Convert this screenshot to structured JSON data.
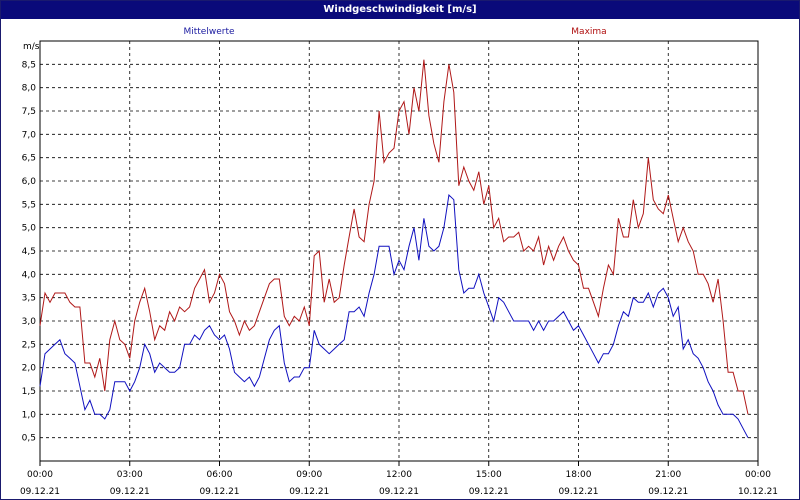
{
  "window": {
    "title": "Windgeschwindigkeit [m/s]"
  },
  "colors": {
    "mean_series": "#1010c0",
    "max_series": "#b01818",
    "title_bar": "#0a0a7a",
    "grid": "#000000"
  },
  "chart_data": {
    "type": "line",
    "title": "Windgeschwindigkeit [m/s]",
    "ylabel": "m/s",
    "xlabel": "",
    "ylim": [
      0,
      9
    ],
    "y_ticks": [
      "0,5",
      "1,0",
      "1,5",
      "2,0",
      "2,5",
      "3,0",
      "3,5",
      "4,0",
      "4,5",
      "5,0",
      "5,5",
      "6,0",
      "6,5",
      "7,0",
      "7,5",
      "8,0",
      "8,5"
    ],
    "xlim_hours": [
      0,
      24
    ],
    "x_ticks": [
      {
        "time": "00:00",
        "date": "09.12.21"
      },
      {
        "time": "03:00",
        "date": "09.12.21"
      },
      {
        "time": "06:00",
        "date": "09.12.21"
      },
      {
        "time": "09:00",
        "date": "09.12.21"
      },
      {
        "time": "12:00",
        "date": "09.12.21"
      },
      {
        "time": "15:00",
        "date": "09.12.21"
      },
      {
        "time": "18:00",
        "date": "09.12.21"
      },
      {
        "time": "21:00",
        "date": "09.12.21"
      },
      {
        "time": "00:00",
        "date": "10.12.21"
      }
    ],
    "grid": true,
    "legend_position": "top",
    "series": [
      {
        "name": "Mittelwerte",
        "color": "#1010c0",
        "points": [
          [
            "00:00",
            1.6
          ],
          [
            "00:10",
            2.3
          ],
          [
            "00:20",
            2.4
          ],
          [
            "00:30",
            2.5
          ],
          [
            "00:40",
            2.6
          ],
          [
            "00:50",
            2.3
          ],
          [
            "01:00",
            2.2
          ],
          [
            "01:10",
            2.1
          ],
          [
            "01:20",
            1.6
          ],
          [
            "01:30",
            1.1
          ],
          [
            "01:40",
            1.3
          ],
          [
            "01:50",
            1.0
          ],
          [
            "02:00",
            1.0
          ],
          [
            "02:10",
            0.9
          ],
          [
            "02:20",
            1.1
          ],
          [
            "02:30",
            1.7
          ],
          [
            "02:40",
            1.7
          ],
          [
            "02:50",
            1.7
          ],
          [
            "03:00",
            1.5
          ],
          [
            "03:10",
            1.7
          ],
          [
            "03:20",
            2.0
          ],
          [
            "03:30",
            2.5
          ],
          [
            "03:40",
            2.3
          ],
          [
            "03:50",
            1.9
          ],
          [
            "04:00",
            2.1
          ],
          [
            "04:10",
            2.0
          ],
          [
            "04:20",
            1.9
          ],
          [
            "04:30",
            1.9
          ],
          [
            "04:40",
            2.0
          ],
          [
            "04:50",
            2.5
          ],
          [
            "05:00",
            2.5
          ],
          [
            "05:10",
            2.7
          ],
          [
            "05:20",
            2.6
          ],
          [
            "05:30",
            2.8
          ],
          [
            "05:40",
            2.9
          ],
          [
            "05:50",
            2.7
          ],
          [
            "06:00",
            2.6
          ],
          [
            "06:10",
            2.7
          ],
          [
            "06:20",
            2.4
          ],
          [
            "06:30",
            1.9
          ],
          [
            "06:40",
            1.8
          ],
          [
            "06:50",
            1.7
          ],
          [
            "07:00",
            1.8
          ],
          [
            "07:10",
            1.6
          ],
          [
            "07:20",
            1.8
          ],
          [
            "07:30",
            2.2
          ],
          [
            "07:40",
            2.6
          ],
          [
            "07:50",
            2.8
          ],
          [
            "08:00",
            2.9
          ],
          [
            "08:10",
            2.1
          ],
          [
            "08:20",
            1.7
          ],
          [
            "08:30",
            1.8
          ],
          [
            "08:40",
            1.8
          ],
          [
            "08:50",
            2.0
          ],
          [
            "09:00",
            2.0
          ],
          [
            "09:10",
            2.8
          ],
          [
            "09:20",
            2.5
          ],
          [
            "09:30",
            2.4
          ],
          [
            "09:40",
            2.3
          ],
          [
            "09:50",
            2.4
          ],
          [
            "10:00",
            2.5
          ],
          [
            "10:10",
            2.6
          ],
          [
            "10:20",
            3.2
          ],
          [
            "10:30",
            3.2
          ],
          [
            "10:40",
            3.3
          ],
          [
            "10:50",
            3.1
          ],
          [
            "11:00",
            3.6
          ],
          [
            "11:10",
            4.0
          ],
          [
            "11:20",
            4.6
          ],
          [
            "11:30",
            4.6
          ],
          [
            "11:40",
            4.6
          ],
          [
            "11:50",
            4.0
          ],
          [
            "12:00",
            4.3
          ],
          [
            "12:10",
            4.1
          ],
          [
            "12:20",
            4.6
          ],
          [
            "12:30",
            5.0
          ],
          [
            "12:40",
            4.3
          ],
          [
            "12:50",
            5.2
          ],
          [
            "13:00",
            4.6
          ],
          [
            "13:10",
            4.5
          ],
          [
            "13:20",
            4.6
          ],
          [
            "13:30",
            5.0
          ],
          [
            "13:40",
            5.7
          ],
          [
            "13:50",
            5.6
          ],
          [
            "14:00",
            4.1
          ],
          [
            "14:10",
            3.6
          ],
          [
            "14:20",
            3.7
          ],
          [
            "14:30",
            3.7
          ],
          [
            "14:40",
            4.0
          ],
          [
            "14:50",
            3.6
          ],
          [
            "15:00",
            3.3
          ],
          [
            "15:10",
            3.0
          ],
          [
            "15:20",
            3.5
          ],
          [
            "15:30",
            3.4
          ],
          [
            "15:40",
            3.2
          ],
          [
            "15:50",
            3.0
          ],
          [
            "16:00",
            3.0
          ],
          [
            "16:10",
            3.0
          ],
          [
            "16:20",
            3.0
          ],
          [
            "16:30",
            2.8
          ],
          [
            "16:40",
            3.0
          ],
          [
            "16:50",
            2.8
          ],
          [
            "17:00",
            3.0
          ],
          [
            "17:10",
            3.0
          ],
          [
            "17:20",
            3.1
          ],
          [
            "17:30",
            3.2
          ],
          [
            "17:40",
            3.0
          ],
          [
            "17:50",
            2.8
          ],
          [
            "18:00",
            2.9
          ],
          [
            "18:10",
            2.7
          ],
          [
            "18:20",
            2.5
          ],
          [
            "18:30",
            2.3
          ],
          [
            "18:40",
            2.1
          ],
          [
            "18:50",
            2.3
          ],
          [
            "19:00",
            2.3
          ],
          [
            "19:10",
            2.5
          ],
          [
            "19:20",
            2.9
          ],
          [
            "19:30",
            3.2
          ],
          [
            "19:40",
            3.1
          ],
          [
            "19:50",
            3.5
          ],
          [
            "20:00",
            3.4
          ],
          [
            "20:10",
            3.4
          ],
          [
            "20:20",
            3.6
          ],
          [
            "20:30",
            3.3
          ],
          [
            "20:40",
            3.6
          ],
          [
            "20:50",
            3.7
          ],
          [
            "21:00",
            3.5
          ],
          [
            "21:10",
            3.1
          ],
          [
            "21:20",
            3.3
          ],
          [
            "21:30",
            2.4
          ],
          [
            "21:40",
            2.6
          ],
          [
            "21:50",
            2.3
          ],
          [
            "22:00",
            2.2
          ],
          [
            "22:10",
            2.0
          ],
          [
            "22:20",
            1.7
          ],
          [
            "22:30",
            1.5
          ],
          [
            "22:40",
            1.2
          ],
          [
            "22:50",
            1.0
          ],
          [
            "23:00",
            1.0
          ],
          [
            "23:10",
            1.0
          ],
          [
            "23:20",
            0.9
          ],
          [
            "23:30",
            0.7
          ],
          [
            "23:40",
            0.5
          ]
        ]
      },
      {
        "name": "Maxima",
        "color": "#b01818",
        "points": [
          [
            "00:00",
            2.9
          ],
          [
            "00:10",
            3.6
          ],
          [
            "00:20",
            3.4
          ],
          [
            "00:30",
            3.6
          ],
          [
            "00:40",
            3.6
          ],
          [
            "00:50",
            3.6
          ],
          [
            "01:00",
            3.4
          ],
          [
            "01:10",
            3.3
          ],
          [
            "01:20",
            3.3
          ],
          [
            "01:30",
            2.1
          ],
          [
            "01:40",
            2.1
          ],
          [
            "01:50",
            1.8
          ],
          [
            "02:00",
            2.2
          ],
          [
            "02:10",
            1.5
          ],
          [
            "02:20",
            2.6
          ],
          [
            "02:30",
            3.0
          ],
          [
            "02:40",
            2.6
          ],
          [
            "02:50",
            2.5
          ],
          [
            "03:00",
            2.2
          ],
          [
            "03:10",
            3.0
          ],
          [
            "03:20",
            3.4
          ],
          [
            "03:30",
            3.7
          ],
          [
            "03:40",
            3.2
          ],
          [
            "03:50",
            2.6
          ],
          [
            "04:00",
            2.9
          ],
          [
            "04:10",
            2.8
          ],
          [
            "04:20",
            3.2
          ],
          [
            "04:30",
            3.0
          ],
          [
            "04:40",
            3.3
          ],
          [
            "04:50",
            3.2
          ],
          [
            "05:00",
            3.3
          ],
          [
            "05:10",
            3.7
          ],
          [
            "05:20",
            3.9
          ],
          [
            "05:30",
            4.1
          ],
          [
            "05:40",
            3.4
          ],
          [
            "05:50",
            3.6
          ],
          [
            "06:00",
            4.0
          ],
          [
            "06:10",
            3.8
          ],
          [
            "06:20",
            3.2
          ],
          [
            "06:30",
            3.0
          ],
          [
            "06:40",
            2.7
          ],
          [
            "06:50",
            3.0
          ],
          [
            "07:00",
            2.8
          ],
          [
            "07:10",
            2.9
          ],
          [
            "07:20",
            3.2
          ],
          [
            "07:30",
            3.5
          ],
          [
            "07:40",
            3.8
          ],
          [
            "07:50",
            3.9
          ],
          [
            "08:00",
            3.9
          ],
          [
            "08:10",
            3.1
          ],
          [
            "08:20",
            2.9
          ],
          [
            "08:30",
            3.1
          ],
          [
            "08:40",
            3.0
          ],
          [
            "08:50",
            3.3
          ],
          [
            "09:00",
            2.9
          ],
          [
            "09:10",
            4.4
          ],
          [
            "09:20",
            4.5
          ],
          [
            "09:30",
            3.4
          ],
          [
            "09:40",
            3.9
          ],
          [
            "09:50",
            3.4
          ],
          [
            "10:00",
            3.5
          ],
          [
            "10:10",
            4.2
          ],
          [
            "10:20",
            4.8
          ],
          [
            "10:30",
            5.4
          ],
          [
            "10:40",
            4.8
          ],
          [
            "10:50",
            4.7
          ],
          [
            "11:00",
            5.5
          ],
          [
            "11:10",
            6.0
          ],
          [
            "11:20",
            7.5
          ],
          [
            "11:30",
            6.4
          ],
          [
            "11:40",
            6.6
          ],
          [
            "11:50",
            6.7
          ],
          [
            "12:00",
            7.5
          ],
          [
            "12:10",
            7.7
          ],
          [
            "12:20",
            7.0
          ],
          [
            "12:30",
            8.0
          ],
          [
            "12:40",
            7.5
          ],
          [
            "12:50",
            8.6
          ],
          [
            "13:00",
            7.4
          ],
          [
            "13:10",
            6.8
          ],
          [
            "13:20",
            6.4
          ],
          [
            "13:30",
            7.7
          ],
          [
            "13:40",
            8.5
          ],
          [
            "13:50",
            7.9
          ],
          [
            "14:00",
            5.9
          ],
          [
            "14:10",
            6.3
          ],
          [
            "14:20",
            6.0
          ],
          [
            "14:30",
            5.8
          ],
          [
            "14:40",
            6.2
          ],
          [
            "14:50",
            5.5
          ],
          [
            "15:00",
            5.9
          ],
          [
            "15:10",
            5.0
          ],
          [
            "15:20",
            5.2
          ],
          [
            "15:30",
            4.7
          ],
          [
            "15:40",
            4.8
          ],
          [
            "15:50",
            4.8
          ],
          [
            "16:00",
            4.9
          ],
          [
            "16:10",
            4.5
          ],
          [
            "16:20",
            4.6
          ],
          [
            "16:30",
            4.5
          ],
          [
            "16:40",
            4.8
          ],
          [
            "16:50",
            4.2
          ],
          [
            "17:00",
            4.6
          ],
          [
            "17:10",
            4.3
          ],
          [
            "17:20",
            4.6
          ],
          [
            "17:30",
            4.8
          ],
          [
            "17:40",
            4.5
          ],
          [
            "17:50",
            4.3
          ],
          [
            "18:00",
            4.2
          ],
          [
            "18:10",
            3.7
          ],
          [
            "18:20",
            3.7
          ],
          [
            "18:30",
            3.4
          ],
          [
            "18:40",
            3.1
          ],
          [
            "18:50",
            3.7
          ],
          [
            "19:00",
            4.2
          ],
          [
            "19:10",
            4.0
          ],
          [
            "19:20",
            5.2
          ],
          [
            "19:30",
            4.8
          ],
          [
            "19:40",
            4.8
          ],
          [
            "19:50",
            5.6
          ],
          [
            "20:00",
            5.0
          ],
          [
            "20:10",
            5.3
          ],
          [
            "20:20",
            6.5
          ],
          [
            "20:30",
            5.6
          ],
          [
            "20:40",
            5.4
          ],
          [
            "20:50",
            5.3
          ],
          [
            "21:00",
            5.7
          ],
          [
            "21:10",
            5.2
          ],
          [
            "21:20",
            4.7
          ],
          [
            "21:30",
            5.0
          ],
          [
            "21:40",
            4.7
          ],
          [
            "21:50",
            4.5
          ],
          [
            "22:00",
            4.0
          ],
          [
            "22:10",
            4.0
          ],
          [
            "22:20",
            3.8
          ],
          [
            "22:30",
            3.4
          ],
          [
            "22:40",
            3.9
          ],
          [
            "22:50",
            3.0
          ],
          [
            "23:00",
            1.9
          ],
          [
            "23:10",
            1.9
          ],
          [
            "23:20",
            1.5
          ],
          [
            "23:30",
            1.5
          ],
          [
            "23:40",
            1.0
          ]
        ]
      }
    ]
  }
}
